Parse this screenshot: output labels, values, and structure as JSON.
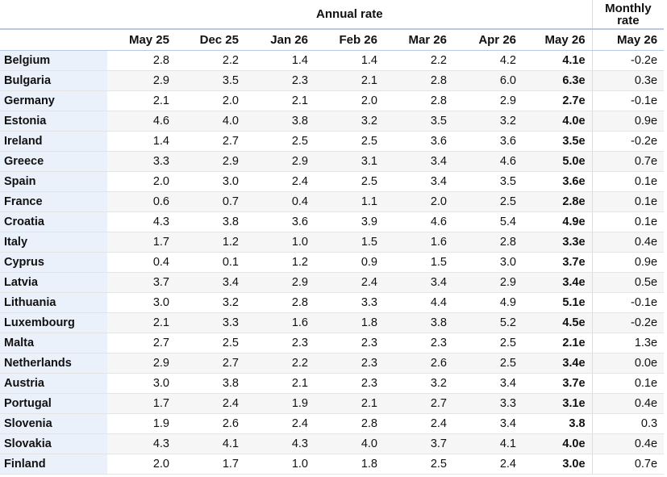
{
  "header": {
    "groups": [
      "Annual rate",
      "Monthly rate"
    ],
    "columns": [
      "May 25",
      "Dec 25",
      "Jan 26",
      "Feb 26",
      "Mar 26",
      "Apr 26",
      "May 26",
      "May 26"
    ]
  },
  "table": {
    "rows": [
      [
        "Belgium",
        "2.8",
        "2.2",
        "1.4",
        "1.4",
        "2.2",
        "4.2",
        "4.1e",
        "-0.2e"
      ],
      [
        "Bulgaria",
        "2.9",
        "3.5",
        "2.3",
        "2.1",
        "2.8",
        "6.0",
        "6.3e",
        "0.3e"
      ],
      [
        "Germany",
        "2.1",
        "2.0",
        "2.1",
        "2.0",
        "2.8",
        "2.9",
        "2.7e",
        "-0.1e"
      ],
      [
        "Estonia",
        "4.6",
        "4.0",
        "3.8",
        "3.2",
        "3.5",
        "3.2",
        "4.0e",
        "0.9e"
      ],
      [
        "Ireland",
        "1.4",
        "2.7",
        "2.5",
        "2.5",
        "3.6",
        "3.6",
        "3.5e",
        "-0.2e"
      ],
      [
        "Greece",
        "3.3",
        "2.9",
        "2.9",
        "3.1",
        "3.4",
        "4.6",
        "5.0e",
        "0.7e"
      ],
      [
        "Spain",
        "2.0",
        "3.0",
        "2.4",
        "2.5",
        "3.4",
        "3.5",
        "3.6e",
        "0.1e"
      ],
      [
        "France",
        "0.6",
        "0.7",
        "0.4",
        "1.1",
        "2.0",
        "2.5",
        "2.8e",
        "0.1e"
      ],
      [
        "Croatia",
        "4.3",
        "3.8",
        "3.6",
        "3.9",
        "4.6",
        "5.4",
        "4.9e",
        "0.1e"
      ],
      [
        "Italy",
        "1.7",
        "1.2",
        "1.0",
        "1.5",
        "1.6",
        "2.8",
        "3.3e",
        "0.4e"
      ],
      [
        "Cyprus",
        "0.4",
        "0.1",
        "1.2",
        "0.9",
        "1.5",
        "3.0",
        "3.7e",
        "0.9e"
      ],
      [
        "Latvia",
        "3.7",
        "3.4",
        "2.9",
        "2.4",
        "3.4",
        "2.9",
        "3.4e",
        "0.5e"
      ],
      [
        "Lithuania",
        "3.0",
        "3.2",
        "2.8",
        "3.3",
        "4.4",
        "4.9",
        "5.1e",
        "-0.1e"
      ],
      [
        "Luxembourg",
        "2.1",
        "3.3",
        "1.6",
        "1.8",
        "3.8",
        "5.2",
        "4.5e",
        "-0.2e"
      ],
      [
        "Malta",
        "2.7",
        "2.5",
        "2.3",
        "2.3",
        "2.3",
        "2.5",
        "2.1e",
        "1.3e"
      ],
      [
        "Netherlands",
        "2.9",
        "2.7",
        "2.2",
        "2.3",
        "2.6",
        "2.5",
        "3.4e",
        "0.0e"
      ],
      [
        "Austria",
        "3.0",
        "3.8",
        "2.1",
        "2.3",
        "3.2",
        "3.4",
        "3.7e",
        "0.1e"
      ],
      [
        "Portugal",
        "1.7",
        "2.4",
        "1.9",
        "2.1",
        "2.7",
        "3.3",
        "3.1e",
        "0.4e"
      ],
      [
        "Slovenia",
        "1.9",
        "2.6",
        "2.4",
        "2.8",
        "2.4",
        "3.4",
        "3.8",
        "0.3"
      ],
      [
        "Slovakia",
        "4.3",
        "4.1",
        "4.3",
        "4.0",
        "3.7",
        "4.1",
        "4.0e",
        "0.4e"
      ],
      [
        "Finland",
        "2.0",
        "1.7",
        "1.0",
        "1.8",
        "2.5",
        "2.4",
        "3.0e",
        "0.7e"
      ]
    ]
  }
}
